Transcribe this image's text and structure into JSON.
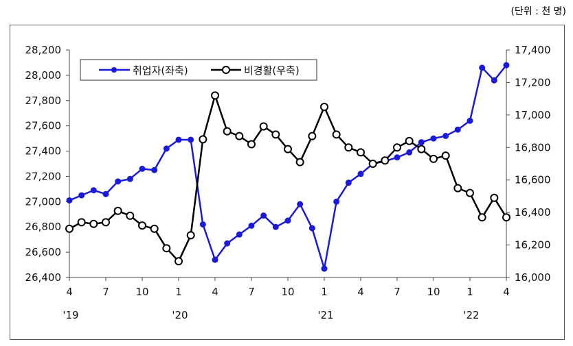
{
  "unit_label": "(단위 : 천 명)",
  "chart_data": {
    "type": "line",
    "x": [
      "4",
      "5",
      "6",
      "7",
      "8",
      "9",
      "10",
      "11",
      "12",
      "1",
      "2",
      "3",
      "4",
      "5",
      "6",
      "7",
      "8",
      "9",
      "10",
      "11",
      "12",
      "1",
      "2",
      "3",
      "4",
      "5",
      "6",
      "7",
      "8",
      "9",
      "10",
      "11",
      "12",
      "1",
      "2",
      "3",
      "4"
    ],
    "x_tick_labels": [
      "4",
      "7",
      "10",
      "1",
      "4",
      "7",
      "10",
      "1",
      "4",
      "7",
      "10",
      "1",
      "4"
    ],
    "year_labels": [
      "'19",
      "'20",
      "'21",
      "'22"
    ],
    "series": [
      {
        "name": "취업자(좌축)",
        "axis": "left",
        "color": "#1a1adc",
        "marker": "filled-circle",
        "values": [
          27010,
          27050,
          27090,
          27060,
          27160,
          27180,
          27260,
          27250,
          27420,
          27490,
          27490,
          26820,
          26540,
          26670,
          26740,
          26810,
          26890,
          26800,
          26850,
          26980,
          26790,
          26470,
          27000,
          27150,
          27220,
          27300,
          27320,
          27350,
          27390,
          27470,
          27500,
          27520,
          27570,
          27640,
          28060,
          27960,
          28080
        ]
      },
      {
        "name": "비경활(우축)",
        "axis": "right",
        "color": "#000000",
        "marker": "open-circle",
        "values": [
          16300,
          16340,
          16330,
          16340,
          16410,
          16380,
          16320,
          16300,
          16180,
          16100,
          16260,
          16850,
          17120,
          16900,
          16870,
          16820,
          16930,
          16880,
          16790,
          16710,
          16870,
          17050,
          16880,
          16800,
          16770,
          16700,
          16720,
          16800,
          16840,
          16790,
          16730,
          16750,
          16550,
          16520,
          16370,
          16490,
          16370
        ]
      }
    ],
    "ylim_left": [
      26400,
      28200
    ],
    "yticks_left": [
      "26,400",
      "26,600",
      "26,800",
      "27,000",
      "27,200",
      "27,400",
      "27,600",
      "27,800",
      "28,000",
      "28,200"
    ],
    "ylim_right": [
      16000,
      17400
    ],
    "yticks_right": [
      "16,000",
      "16,200",
      "16,400",
      "16,600",
      "16,800",
      "17,000",
      "17,200",
      "17,400"
    ],
    "legend_position": "top-left",
    "grid": false
  }
}
